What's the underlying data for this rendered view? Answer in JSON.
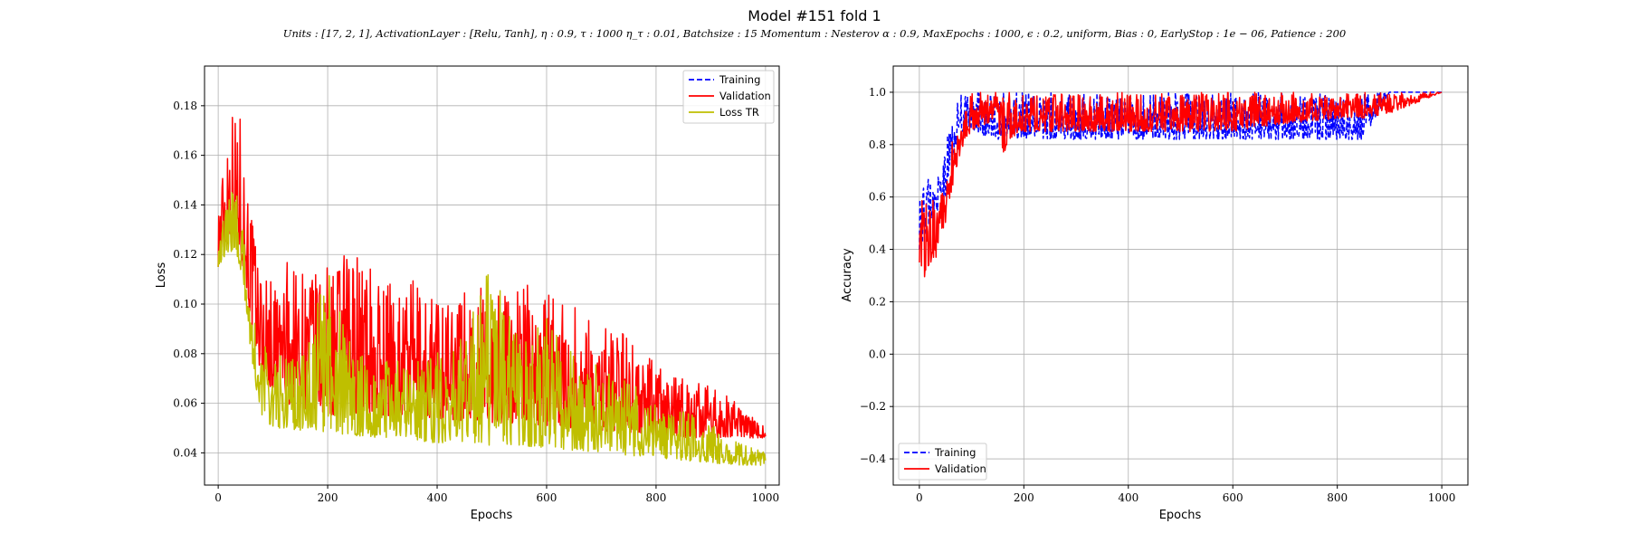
{
  "figure": {
    "title": "Model #151 fold 1",
    "subtitle": "Units : [17, 2, 1], ActivationLayer : [Relu, Tanh], η : 0.9, τ : 1000 η_τ : 0.01, Batchsize : 15 Momentum : Nesterov α : 0.9, MaxEpochs : 1000, ϵ : 0.2, uniform, Bias : 0, EarlyStop : 1e − 06, Patience : 200"
  },
  "colors": {
    "training": "#0000ff",
    "validation": "#ff0000",
    "loss_tr": "#bfbf00",
    "grid": "#b0b0b0"
  },
  "chart_data": [
    {
      "type": "line",
      "xlabel": "Epochs",
      "ylabel": "Loss",
      "xlim": [
        -25,
        1025
      ],
      "ylim": [
        0.027,
        0.196
      ],
      "xticks": [
        0,
        200,
        400,
        600,
        800,
        1000
      ],
      "yticks": [
        0.04,
        0.06,
        0.08,
        0.1,
        0.12,
        0.14,
        0.16,
        0.18
      ],
      "ytick_labels": [
        "0.04",
        "0.06",
        "0.08",
        "0.10",
        "0.12",
        "0.14",
        "0.16",
        "0.18"
      ],
      "grid": true,
      "legend_position": "top-right",
      "legend": [
        "Training",
        "Validation",
        "Loss TR"
      ],
      "series": [
        {
          "name": "Validation",
          "x": [
            0,
            10,
            20,
            30,
            40,
            50,
            60,
            70,
            80,
            100,
            120,
            150,
            200,
            250,
            300,
            350,
            400,
            450,
            500,
            550,
            600,
            650,
            700,
            750,
            800,
            850,
            900,
            950,
            1000
          ],
          "y_low": [
            0.115,
            0.12,
            0.125,
            0.13,
            0.12,
            0.11,
            0.09,
            0.08,
            0.07,
            0.065,
            0.06,
            0.058,
            0.055,
            0.056,
            0.055,
            0.054,
            0.053,
            0.053,
            0.052,
            0.052,
            0.051,
            0.05,
            0.049,
            0.048,
            0.047,
            0.046,
            0.046,
            0.046,
            0.046
          ],
          "y_high": [
            0.145,
            0.16,
            0.188,
            0.178,
            0.178,
            0.16,
            0.14,
            0.125,
            0.115,
            0.11,
            0.12,
            0.115,
            0.115,
            0.124,
            0.11,
            0.11,
            0.105,
            0.11,
            0.105,
            0.11,
            0.105,
            0.1,
            0.095,
            0.09,
            0.075,
            0.07,
            0.067,
            0.06,
            0.05
          ]
        },
        {
          "name": "Loss TR",
          "x": [
            0,
            10,
            20,
            30,
            40,
            50,
            60,
            70,
            80,
            100,
            120,
            150,
            200,
            250,
            300,
            350,
            400,
            450,
            500,
            550,
            600,
            650,
            700,
            750,
            800,
            850,
            900,
            950,
            1000
          ],
          "y_low": [
            0.115,
            0.118,
            0.12,
            0.122,
            0.115,
            0.1,
            0.08,
            0.065,
            0.055,
            0.05,
            0.05,
            0.049,
            0.048,
            0.047,
            0.046,
            0.045,
            0.044,
            0.044,
            0.043,
            0.043,
            0.042,
            0.041,
            0.04,
            0.039,
            0.038,
            0.037,
            0.036,
            0.035,
            0.035
          ],
          "y_high": [
            0.135,
            0.14,
            0.145,
            0.148,
            0.14,
            0.12,
            0.1,
            0.09,
            0.085,
            0.08,
            0.08,
            0.078,
            0.115,
            0.08,
            0.078,
            0.077,
            0.083,
            0.087,
            0.118,
            0.085,
            0.095,
            0.08,
            0.075,
            0.07,
            0.06,
            0.058,
            0.052,
            0.045,
            0.04
          ]
        }
      ]
    },
    {
      "type": "line",
      "xlabel": "Epochs",
      "ylabel": "Accuracy",
      "xlim": [
        -50,
        1050
      ],
      "ylim": [
        -0.5,
        1.1
      ],
      "xticks": [
        0,
        200,
        400,
        600,
        800,
        1000
      ],
      "yticks": [
        -0.4,
        -0.2,
        0.0,
        0.2,
        0.4,
        0.6,
        0.8,
        1.0
      ],
      "ytick_labels": [
        "−0.4",
        "−0.2",
        "0.0",
        "0.2",
        "0.4",
        "0.6",
        "0.8",
        "1.0"
      ],
      "grid": true,
      "legend_position": "bottom-left",
      "legend": [
        "Training",
        "Validation"
      ],
      "series": [
        {
          "name": "Training",
          "x": [
            0,
            10,
            20,
            30,
            40,
            50,
            60,
            70,
            80,
            90,
            100,
            150,
            200,
            300,
            400,
            500,
            600,
            700,
            800,
            850,
            900,
            950,
            1000
          ],
          "y_low": [
            0.4,
            0.45,
            0.5,
            0.55,
            0.55,
            0.6,
            0.7,
            0.8,
            0.85,
            0.85,
            0.85,
            0.82,
            0.82,
            0.82,
            0.82,
            0.82,
            0.82,
            0.82,
            0.82,
            0.82,
            1.0,
            1.0,
            1.0
          ],
          "y_high": [
            0.65,
            0.65,
            0.68,
            0.65,
            0.7,
            0.8,
            0.9,
            0.95,
            1.0,
            1.0,
            1.0,
            1.0,
            1.0,
            1.0,
            1.0,
            1.0,
            1.0,
            1.0,
            1.0,
            1.0,
            1.0,
            1.0,
            1.0
          ]
        },
        {
          "name": "Validation",
          "x": [
            0,
            10,
            20,
            30,
            40,
            50,
            60,
            70,
            80,
            90,
            100,
            150,
            160,
            170,
            200,
            300,
            400,
            500,
            600,
            700,
            800,
            850,
            900,
            940,
            1000
          ],
          "y_low": [
            0.35,
            0.29,
            0.35,
            0.35,
            0.45,
            0.5,
            0.6,
            0.7,
            0.78,
            0.82,
            0.85,
            0.9,
            0.75,
            0.82,
            0.85,
            0.85,
            0.85,
            0.85,
            0.85,
            0.88,
            0.9,
            0.9,
            0.92,
            0.95,
            1.0
          ],
          "y_high": [
            0.65,
            0.65,
            0.6,
            0.6,
            0.62,
            0.7,
            0.8,
            0.85,
            0.9,
            0.95,
            1.0,
            1.0,
            1.0,
            1.0,
            1.0,
            1.0,
            1.0,
            1.0,
            1.0,
            1.0,
            1.0,
            1.0,
            1.0,
            1.0,
            1.0
          ]
        }
      ]
    }
  ]
}
